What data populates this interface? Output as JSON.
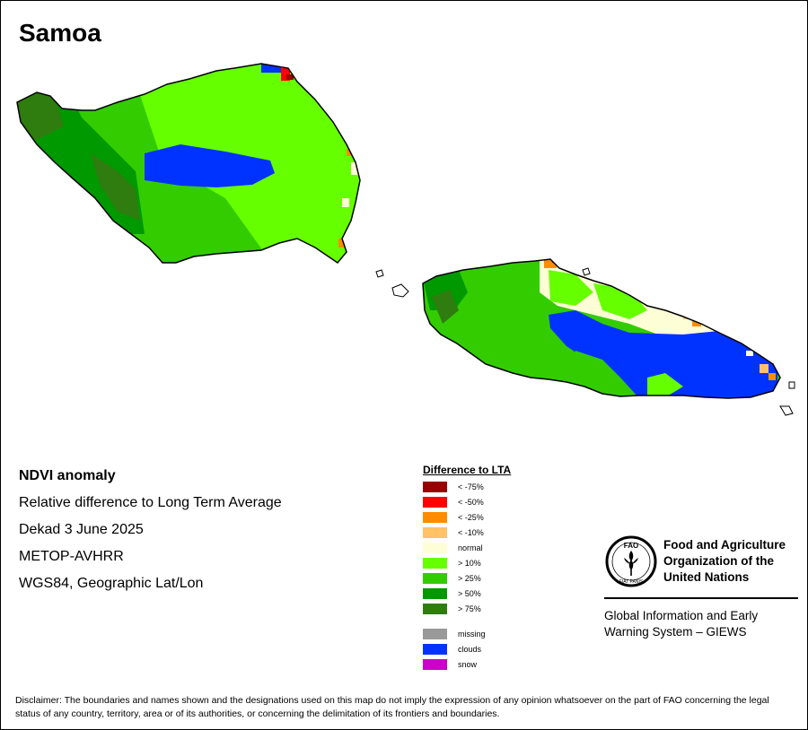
{
  "title": "Samoa",
  "info": {
    "heading": "NDVI anomaly",
    "description": "Relative difference to Long Term Average",
    "period": "Dekad 3 June 2025",
    "sensor": "METOP-AVHRR",
    "projection": "WGS84, Geographic Lat/Lon"
  },
  "legend": {
    "title": "Difference to LTA",
    "items": [
      {
        "label": "< -75%",
        "color": "#990000"
      },
      {
        "label": "< -50%",
        "color": "#ff0000"
      },
      {
        "label": "< -25%",
        "color": "#ff8c00"
      },
      {
        "label": "< -10%",
        "color": "#ffc266"
      },
      {
        "label": "normal",
        "color": "#fefed6"
      },
      {
        "label": "> 10%",
        "color": "#66ff00"
      },
      {
        "label": "> 25%",
        "color": "#33cc00"
      },
      {
        "label": "> 50%",
        "color": "#009900"
      },
      {
        "label": "> 75%",
        "color": "#2e7d0e"
      }
    ],
    "extra": [
      {
        "label": "missing",
        "color": "#999999"
      },
      {
        "label": "clouds",
        "color": "#0033ff"
      },
      {
        "label": "snow",
        "color": "#cc00cc"
      }
    ]
  },
  "organization": {
    "name_lines": [
      "Food and Agriculture",
      "Organization of the",
      "United Nations"
    ],
    "program_lines": [
      "Global Information and Early",
      "Warning System – GIEWS"
    ],
    "logo_text": "FAO",
    "motto": "FIAT PANIS"
  },
  "disclaimer": "Disclaimer: The boundaries and names shown and the designations used on this map do not imply the expression of any opinion whatsoever on the part of FAO concerning the legal status of any country, territory, area or of its authorities, or concerning the delimitation of its frontiers and boundaries."
}
